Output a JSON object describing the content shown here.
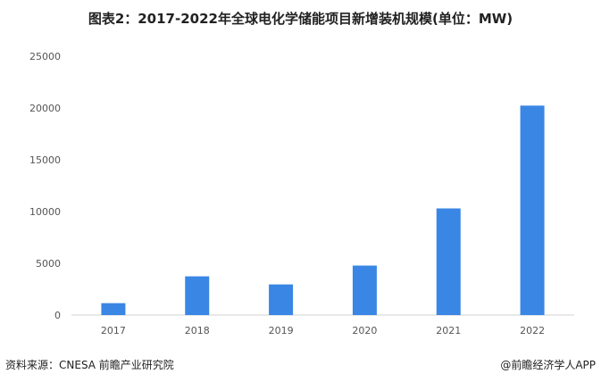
{
  "chart_data": {
    "type": "bar",
    "title": "图表2：2017-2022年全球电化学储能项目新增装机规模(单位：MW)",
    "categories": [
      "2017",
      "2018",
      "2019",
      "2020",
      "2021",
      "2022"
    ],
    "values": [
      1150,
      3740,
      2960,
      4780,
      10300,
      20230
    ],
    "ylim": [
      0,
      25000
    ],
    "yticks": [
      0,
      5000,
      10000,
      15000,
      20000,
      25000
    ],
    "grid": false,
    "bar_color": "#3a86e4",
    "xlabel": "",
    "ylabel": ""
  },
  "footer": {
    "source": "资料来源：CNESA 前瞻产业研究院",
    "brand": "@前瞻经济学人APP"
  }
}
